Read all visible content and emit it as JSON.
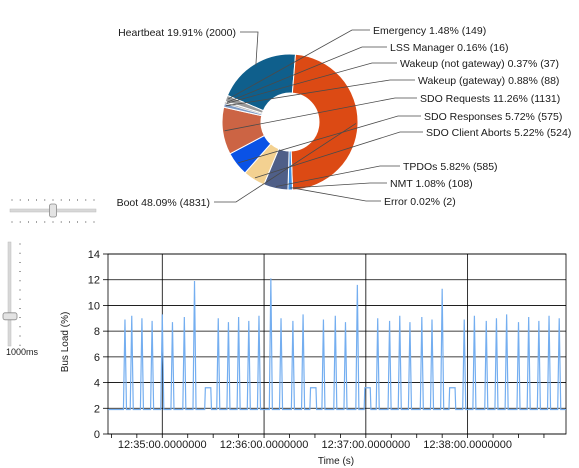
{
  "colors": {
    "heartbeat": "#0f5f8c",
    "boot": "#dc4a14",
    "tpdo": "#4f5f88",
    "nmt": "#3f8fe0",
    "error": "#7a7a7a",
    "sdo_requests": "#cc6444",
    "sdo_responses": "#0a52e6",
    "sdo_client_aborts": "#f3d191",
    "emergency": "#9a9a9a",
    "lss_manager": "#c9c9c9",
    "wakeup_not_gateway": "#b0b0b0",
    "wakeup_gateway": "#7d9ac4",
    "line": "#74aef0",
    "grid": "#000000"
  },
  "controls": {
    "zoom_slider_level": 0.5,
    "interval_slider_level": 0.73,
    "interval_label": "1000ms"
  },
  "chart_data": [
    {
      "type": "pie",
      "donut": true,
      "slices": [
        {
          "key": "heartbeat",
          "label": "Heartbeat 19.91% (2000)",
          "percent": 19.91,
          "count": 2000,
          "color": "#0f5f8c"
        },
        {
          "key": "boot",
          "label": "Boot 48.09% (4831)",
          "percent": 48.09,
          "count": 4831,
          "color": "#dc4a14"
        },
        {
          "key": "error",
          "label": "Error 0.02% (2)",
          "percent": 0.02,
          "count": 2,
          "color": "#7a7a7a"
        },
        {
          "key": "nmt",
          "label": "NMT 1.08% (108)",
          "percent": 1.08,
          "count": 108,
          "color": "#3f8fe0"
        },
        {
          "key": "tpdo",
          "label": "TPDOs 5.82% (585)",
          "percent": 5.82,
          "count": 585,
          "color": "#4f5f88"
        },
        {
          "key": "sdo_client_aborts",
          "label": "SDO Client Aborts 5.22% (524)",
          "percent": 5.22,
          "count": 524,
          "color": "#f3d191"
        },
        {
          "key": "sdo_responses",
          "label": "SDO Responses 5.72% (575)",
          "percent": 5.72,
          "count": 575,
          "color": "#0a52e6"
        },
        {
          "key": "sdo_requests",
          "label": "SDO Requests 11.26% (1131)",
          "percent": 11.26,
          "count": 1131,
          "color": "#cc6444"
        },
        {
          "key": "wakeup_gateway",
          "label": "Wakeup (gateway) 0.88% (88)",
          "percent": 0.88,
          "count": 88,
          "color": "#7d9ac4"
        },
        {
          "key": "wakeup_not_gateway",
          "label": "Wakeup (not gateway) 0.37% (37)",
          "percent": 0.37,
          "count": 37,
          "color": "#b0b0b0"
        },
        {
          "key": "lss_manager",
          "label": "LSS Manager 0.16% (16)",
          "percent": 0.16,
          "count": 16,
          "color": "#c9c9c9"
        },
        {
          "key": "emergency",
          "label": "Emergency 1.48% (149)",
          "percent": 1.48,
          "count": 149,
          "color": "#9a9a9a"
        }
      ]
    },
    {
      "type": "line",
      "xlabel": "Time (s)",
      "ylabel": "Bus Load (%)",
      "ylim": [
        0,
        14
      ],
      "yticks": [
        0,
        2,
        4,
        6,
        8,
        10,
        12,
        14
      ],
      "xticks": [
        "12:35:00.0000000",
        "12:36:00.0000000",
        "12:37:00.0000000",
        "12:38:00.0000000"
      ],
      "xlim_seconds_from_12:34:28": [
        0,
        270
      ],
      "grid": true,
      "series": [
        {
          "color": "#74aef0",
          "baseline": 1.9,
          "peaks": [
            {
              "t": 10,
              "v": 8.9
            },
            {
              "t": 14,
              "v": 9.2
            },
            {
              "t": 20,
              "v": 9.0
            },
            {
              "t": 26,
              "v": 8.8
            },
            {
              "t": 32,
              "v": 9.3
            },
            {
              "t": 38,
              "v": 8.7
            },
            {
              "t": 45,
              "v": 9.1
            },
            {
              "t": 51,
              "v": 11.9
            },
            {
              "t": 59,
              "v": 3.6
            },
            {
              "t": 65,
              "v": 9.0
            },
            {
              "t": 71,
              "v": 8.7
            },
            {
              "t": 77,
              "v": 9.1
            },
            {
              "t": 83,
              "v": 8.8
            },
            {
              "t": 89,
              "v": 9.2
            },
            {
              "t": 96,
              "v": 12.1
            },
            {
              "t": 102,
              "v": 9.0
            },
            {
              "t": 109,
              "v": 8.8
            },
            {
              "t": 115,
              "v": 9.3
            },
            {
              "t": 121,
              "v": 3.6
            },
            {
              "t": 127,
              "v": 8.9
            },
            {
              "t": 134,
              "v": 9.2
            },
            {
              "t": 140,
              "v": 8.7
            },
            {
              "t": 147,
              "v": 11.6
            },
            {
              "t": 153,
              "v": 3.6
            },
            {
              "t": 159,
              "v": 9.0
            },
            {
              "t": 166,
              "v": 8.8
            },
            {
              "t": 172,
              "v": 9.2
            },
            {
              "t": 178,
              "v": 8.7
            },
            {
              "t": 185,
              "v": 9.1
            },
            {
              "t": 191,
              "v": 8.9
            },
            {
              "t": 197,
              "v": 11.3
            },
            {
              "t": 203,
              "v": 3.6
            },
            {
              "t": 210,
              "v": 8.9
            },
            {
              "t": 216,
              "v": 9.2
            },
            {
              "t": 223,
              "v": 8.8
            },
            {
              "t": 229,
              "v": 9.0
            },
            {
              "t": 235,
              "v": 9.3
            },
            {
              "t": 242,
              "v": 8.7
            },
            {
              "t": 248,
              "v": 9.1
            },
            {
              "t": 254,
              "v": 8.8
            },
            {
              "t": 260,
              "v": 9.2
            },
            {
              "t": 266,
              "v": 9.0
            }
          ]
        }
      ]
    }
  ]
}
